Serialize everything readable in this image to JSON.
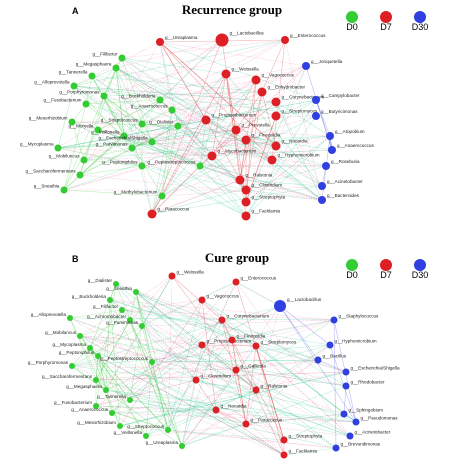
{
  "panels": [
    {
      "letter": "A",
      "title": "Recurrence group",
      "legend": [
        {
          "label": "D0",
          "color": "#33cc33"
        },
        {
          "label": "D7",
          "color": "#dd1f26"
        },
        {
          "label": "D30",
          "color": "#2f3fe0"
        }
      ],
      "nodes": [
        {
          "label": "g__Ureaplasma",
          "color": "#dd1f26"
        },
        {
          "label": "g__Lactobacillus",
          "color": "#dd1f26"
        },
        {
          "label": "g__Enterococcus",
          "color": "#dd1f26"
        },
        {
          "label": "g__Filifactor",
          "color": "#33cc33"
        },
        {
          "label": "g__Megasphaera",
          "color": "#33cc33"
        },
        {
          "label": "g__Tannerella",
          "color": "#33cc33"
        },
        {
          "label": "g__Alloprevotella",
          "color": "#33cc33"
        },
        {
          "label": "g__Porphyromonas",
          "color": "#33cc33"
        },
        {
          "label": "g__Fusobacterium",
          "color": "#33cc33"
        },
        {
          "label": "g__Mesorhizobium",
          "color": "#33cc33"
        },
        {
          "label": "g__Moryella",
          "color": "#33cc33"
        },
        {
          "label": "g__Mycoplasma",
          "color": "#33cc33"
        },
        {
          "label": "g__Mobiluncus",
          "color": "#33cc33"
        },
        {
          "label": "g__Saccharofermentans",
          "color": "#33cc33"
        },
        {
          "label": "g__Sneathia",
          "color": "#33cc33"
        },
        {
          "label": "g__Methylobacterium",
          "color": "#33cc33"
        },
        {
          "label": "g__Buckholderia",
          "color": "#33cc33"
        },
        {
          "label": "g__Anaerococcus",
          "color": "#33cc33"
        },
        {
          "label": "g__Streptococcus",
          "color": "#33cc33"
        },
        {
          "label": "g__Veillonella",
          "color": "#33cc33"
        },
        {
          "label": "g__Escherichia/Shigella",
          "color": "#33cc33"
        },
        {
          "label": "g__Parvimonas",
          "color": "#33cc33"
        },
        {
          "label": "g__Peptoniphilus",
          "color": "#33cc33"
        },
        {
          "label": "g__Peptostreptococcus",
          "color": "#33cc33"
        },
        {
          "label": "g__Dialister",
          "color": "#33cc33"
        },
        {
          "label": "g__Weissella",
          "color": "#dd1f26"
        },
        {
          "label": "g__Vagococcus",
          "color": "#dd1f26"
        },
        {
          "label": "g__Enhydrobacter",
          "color": "#dd1f26"
        },
        {
          "label": "g__Corynebacterium",
          "color": "#dd1f26"
        },
        {
          "label": "g__Streptomyces",
          "color": "#dd1f26"
        },
        {
          "label": "g__Prevotella",
          "color": "#dd1f26"
        },
        {
          "label": "g__Propionibacterium",
          "color": "#dd1f26"
        },
        {
          "label": "g__Finegoldia",
          "color": "#dd1f26"
        },
        {
          "label": "g__Mycobacterium",
          "color": "#dd1f26"
        },
        {
          "label": "g__Clostridium",
          "color": "#dd1f26"
        },
        {
          "label": "g__Streptophyta",
          "color": "#dd1f26"
        },
        {
          "label": "g__Hyphomicrobium",
          "color": "#dd1f26"
        },
        {
          "label": "g__Paracoccus",
          "color": "#dd1f26"
        },
        {
          "label": "g__Ralstonia",
          "color": "#dd1f26"
        },
        {
          "label": "g__Nocardia",
          "color": "#dd1f26"
        },
        {
          "label": "g__Facklamia",
          "color": "#dd1f26"
        },
        {
          "label": "g__Jonquetella",
          "color": "#2f3fe0"
        },
        {
          "label": "g__Campylobacter",
          "color": "#2f3fe0"
        },
        {
          "label": "g__Butyricimonas",
          "color": "#2f3fe0"
        },
        {
          "label": "g__Atopobium",
          "color": "#2f3fe0"
        },
        {
          "label": "g__Anaerococcus",
          "color": "#2f3fe0"
        },
        {
          "label": "g__Roseburia",
          "color": "#2f3fe0"
        },
        {
          "label": "g__Acinetobacter",
          "color": "#2f3fe0"
        },
        {
          "label": "g__Bacteroides",
          "color": "#2f3fe0"
        }
      ]
    },
    {
      "letter": "B",
      "title": "Cure group",
      "legend": [
        {
          "label": "D0",
          "color": "#33cc33"
        },
        {
          "label": "D7",
          "color": "#dd1f26"
        },
        {
          "label": "D30",
          "color": "#2f3fe0"
        }
      ],
      "nodes": [
        {
          "label": "g__Dialister",
          "color": "#33cc33"
        },
        {
          "label": "g__Sneathia",
          "color": "#33cc33"
        },
        {
          "label": "g__Buckholderia",
          "color": "#33cc33"
        },
        {
          "label": "g__Filifactor",
          "color": "#33cc33"
        },
        {
          "label": "g__Achromobacter",
          "color": "#33cc33"
        },
        {
          "label": "g__Parvimonas",
          "color": "#33cc33"
        },
        {
          "label": "g__Mycoplasma",
          "color": "#33cc33"
        },
        {
          "label": "g__Peptoniphilus",
          "color": "#33cc33"
        },
        {
          "label": "g__Porphyromonas",
          "color": "#33cc33"
        },
        {
          "label": "g__Saccharofermentans",
          "color": "#33cc33"
        },
        {
          "label": "g__Megasphaera",
          "color": "#33cc33"
        },
        {
          "label": "g__Tannerella",
          "color": "#33cc33"
        },
        {
          "label": "g__Fusobacterium",
          "color": "#33cc33"
        },
        {
          "label": "g__Anaerococcus",
          "color": "#33cc33"
        },
        {
          "label": "g__Peptostreptococcus",
          "color": "#33cc33"
        },
        {
          "label": "g__Mesorhizobium",
          "color": "#33cc33"
        },
        {
          "label": "g__Veillonella",
          "color": "#33cc33"
        },
        {
          "label": "g__Streptococcus",
          "color": "#33cc33"
        },
        {
          "label": "g__Ureaplasma",
          "color": "#33cc33"
        },
        {
          "label": "g__Mobiluncus",
          "color": "#33cc33"
        },
        {
          "label": "g__Alloprevotella",
          "color": "#33cc33"
        },
        {
          "label": "g__Weissella",
          "color": "#dd1f26"
        },
        {
          "label": "g__Enterococcus",
          "color": "#dd1f26"
        },
        {
          "label": "g__Vagococcus",
          "color": "#dd1f26"
        },
        {
          "label": "g__Corynebacterium",
          "color": "#dd1f26"
        },
        {
          "label": "g__Propionibacterium",
          "color": "#dd1f26"
        },
        {
          "label": "g__Finegoldia",
          "color": "#dd1f26"
        },
        {
          "label": "g__Streptomyces",
          "color": "#dd1f26"
        },
        {
          "label": "g__Clostridium",
          "color": "#dd1f26"
        },
        {
          "label": "g__Gallicola",
          "color": "#dd1f26"
        },
        {
          "label": "g__Ralstonia",
          "color": "#dd1f26"
        },
        {
          "label": "g__Nocardia",
          "color": "#dd1f26"
        },
        {
          "label": "g__Paracoccus",
          "color": "#dd1f26"
        },
        {
          "label": "g__Streptophyta",
          "color": "#dd1f26"
        },
        {
          "label": "g__Facklamia",
          "color": "#dd1f26"
        },
        {
          "label": "g__Lactobacillus",
          "color": "#2f3fe0"
        },
        {
          "label": "g__Staphylococcus",
          "color": "#2f3fe0"
        },
        {
          "label": "g__Hyphomicrobium",
          "color": "#2f3fe0"
        },
        {
          "label": "g__Bacillus",
          "color": "#2f3fe0"
        },
        {
          "label": "g__Escherichia/Shigella",
          "color": "#2f3fe0"
        },
        {
          "label": "g__Rhodobacter",
          "color": "#2f3fe0"
        },
        {
          "label": "g__Sphingobium",
          "color": "#2f3fe0"
        },
        {
          "label": "g__Pseudomonas",
          "color": "#2f3fe0"
        },
        {
          "label": "g__Acinetobacter",
          "color": "#2f3fe0"
        },
        {
          "label": "g__Brevundimonas",
          "color": "#2f3fe0"
        }
      ]
    }
  ]
}
